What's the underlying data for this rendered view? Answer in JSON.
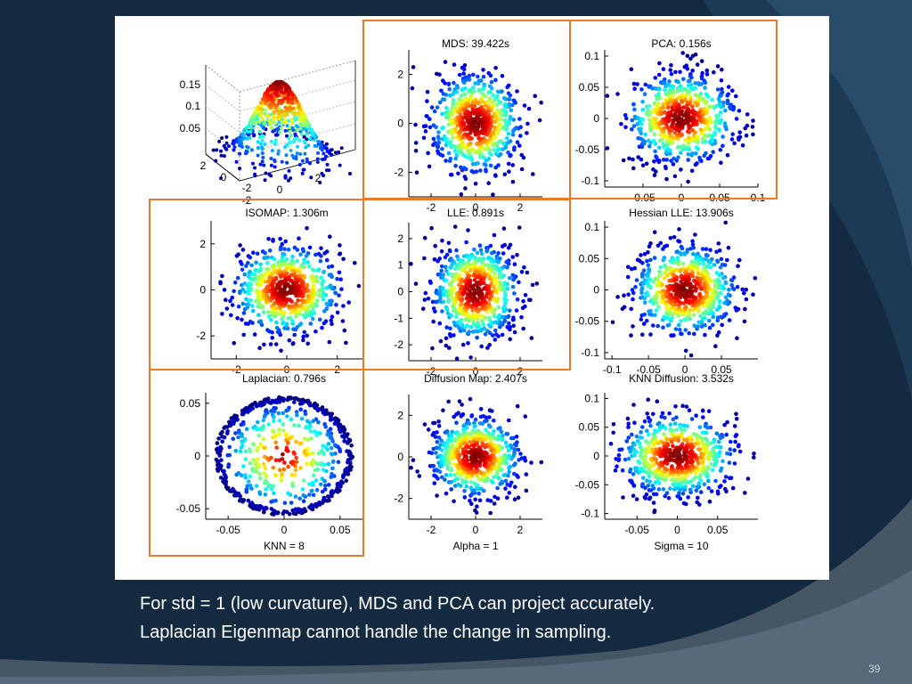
{
  "slide": {
    "caption_lines": [
      "For std = 1 (low curvature), MDS and PCA can project accurately.",
      "Laplacian Eigenmap cannot handle the change in sampling."
    ],
    "slide_number": "39",
    "colors": {
      "background": "#132a40",
      "highlight_box": "#e87a2a",
      "figure_bg": "#ffffff"
    }
  },
  "chart_data": [
    {
      "type": "scatter3d",
      "id": "original",
      "title": "",
      "z_ticks": [
        "0.15",
        "0.1",
        "0.05"
      ],
      "x_ticks": [
        "-2",
        "0",
        "2"
      ],
      "y_ticks": [
        "2",
        "0",
        "-2"
      ],
      "description_values": {
        "distribution": "2D Gaussian, std = 1",
        "z_max": 0.16
      }
    },
    {
      "type": "scatter",
      "id": "mds",
      "title": "MDS: 39.422s",
      "xlabel": "",
      "xlim": [
        -3,
        3
      ],
      "ylim": [
        -3,
        3
      ],
      "x_ticks": [
        -2,
        0,
        2
      ],
      "y_ticks": [
        -2,
        0,
        2
      ],
      "x_tick_labels": [
        "-2",
        "0",
        "2"
      ],
      "y_tick_labels": [
        "-2",
        "0",
        "2"
      ],
      "center": [
        0,
        0
      ],
      "spread": [
        1,
        1
      ],
      "highlighted": true
    },
    {
      "type": "scatter",
      "id": "pca",
      "title": "PCA: 0.156s",
      "xlabel": "",
      "xlim": [
        -0.1,
        0.1
      ],
      "ylim": [
        -0.11,
        0.11
      ],
      "x_ticks": [
        -0.05,
        0,
        0.05,
        0.1
      ],
      "y_ticks": [
        -0.1,
        -0.05,
        0,
        0.05,
        0.1
      ],
      "x_tick_labels": [
        "-0.05",
        "0",
        "0.05",
        "0.1"
      ],
      "y_tick_labels": [
        "-0.1",
        "-0.05",
        "0",
        "0.05",
        "0.1"
      ],
      "center": [
        0,
        0
      ],
      "spread": [
        0.035,
        0.035
      ],
      "highlighted": true
    },
    {
      "type": "scatter",
      "id": "isomap",
      "title": "ISOMAP: 1.306m",
      "xlabel": "",
      "xlim": [
        -3,
        3
      ],
      "ylim": [
        -3,
        3
      ],
      "x_ticks": [
        -2,
        0,
        2
      ],
      "y_ticks": [
        -2,
        0,
        2
      ],
      "x_tick_labels": [
        "-2",
        "0",
        "2"
      ],
      "y_tick_labels": [
        "-2",
        "0",
        "2"
      ],
      "center": [
        0,
        0
      ],
      "spread": [
        1.05,
        0.95
      ],
      "highlighted": true
    },
    {
      "type": "scatter",
      "id": "lle",
      "title": "LLE: 0.891s",
      "xlabel": "",
      "xlim": [
        -3,
        3
      ],
      "ylim": [
        -2.6,
        2.6
      ],
      "x_ticks": [
        -2,
        0,
        2
      ],
      "y_ticks": [
        -2,
        -1,
        0,
        1,
        2
      ],
      "x_tick_labels": [
        "-2",
        "0",
        "2"
      ],
      "y_tick_labels": [
        "-2",
        "-1",
        "0",
        "1",
        "2"
      ],
      "center": [
        0,
        0
      ],
      "spread": [
        0.95,
        0.9
      ],
      "highlighted": true
    },
    {
      "type": "scatter",
      "id": "hessian_lle",
      "title": "Hessian LLE: 13.906s",
      "xlabel": "",
      "xlim": [
        -0.11,
        0.1
      ],
      "ylim": [
        -0.11,
        0.11
      ],
      "x_ticks": [
        -0.1,
        -0.05,
        0,
        0.05
      ],
      "y_ticks": [
        -0.1,
        -0.05,
        0,
        0.05,
        0.1
      ],
      "x_tick_labels": [
        "-0.1",
        "-0.05",
        "0",
        "0.05"
      ],
      "y_tick_labels": [
        "-0.1",
        "-0.05",
        "0",
        "0.05",
        "0.1"
      ],
      "center": [
        0,
        0
      ],
      "spread": [
        0.035,
        0.035
      ],
      "highlighted": false
    },
    {
      "type": "scatter",
      "id": "laplacian",
      "title": "Laplacian: 0.796s",
      "xlabel": "KNN = 8",
      "xlim": [
        -0.07,
        0.07
      ],
      "ylim": [
        -0.06,
        0.06
      ],
      "x_ticks": [
        -0.05,
        0,
        0.05
      ],
      "y_ticks": [
        -0.05,
        0,
        0.05
      ],
      "x_tick_labels": [
        "-0.05",
        "0",
        "0.05"
      ],
      "y_tick_labels": [
        "-0.05",
        "0",
        "0.05"
      ],
      "center": [
        0,
        0
      ],
      "spread": [
        0.06,
        0.055
      ],
      "shape": "ring",
      "highlighted": true
    },
    {
      "type": "scatter",
      "id": "diffusion_map",
      "title": "Diffusion Map: 2.407s",
      "xlabel": "Alpha = 1",
      "xlim": [
        -3,
        3
      ],
      "ylim": [
        -3,
        3
      ],
      "x_ticks": [
        -2,
        0,
        2
      ],
      "y_ticks": [
        -2,
        0,
        2
      ],
      "x_tick_labels": [
        "-2",
        "0",
        "2"
      ],
      "y_tick_labels": [
        "-2",
        "0",
        "2"
      ],
      "center": [
        0,
        0
      ],
      "spread": [
        1,
        0.95
      ],
      "highlighted": false
    },
    {
      "type": "scatter",
      "id": "knn_diffusion",
      "title": "KNN Diffusion: 3.532s",
      "xlabel": "Sigma = 10",
      "xlim": [
        -0.09,
        0.1
      ],
      "ylim": [
        -0.11,
        0.11
      ],
      "x_ticks": [
        -0.05,
        0,
        0.05
      ],
      "y_ticks": [
        -0.1,
        -0.05,
        0,
        0.05,
        0.1
      ],
      "x_tick_labels": [
        "-0.05",
        "0",
        "0.05"
      ],
      "y_tick_labels": [
        "-0.1",
        "-0.05",
        "0",
        "0.05",
        "0.1"
      ],
      "center": [
        0,
        0
      ],
      "spread": [
        0.035,
        0.035
      ],
      "highlighted": false
    }
  ]
}
